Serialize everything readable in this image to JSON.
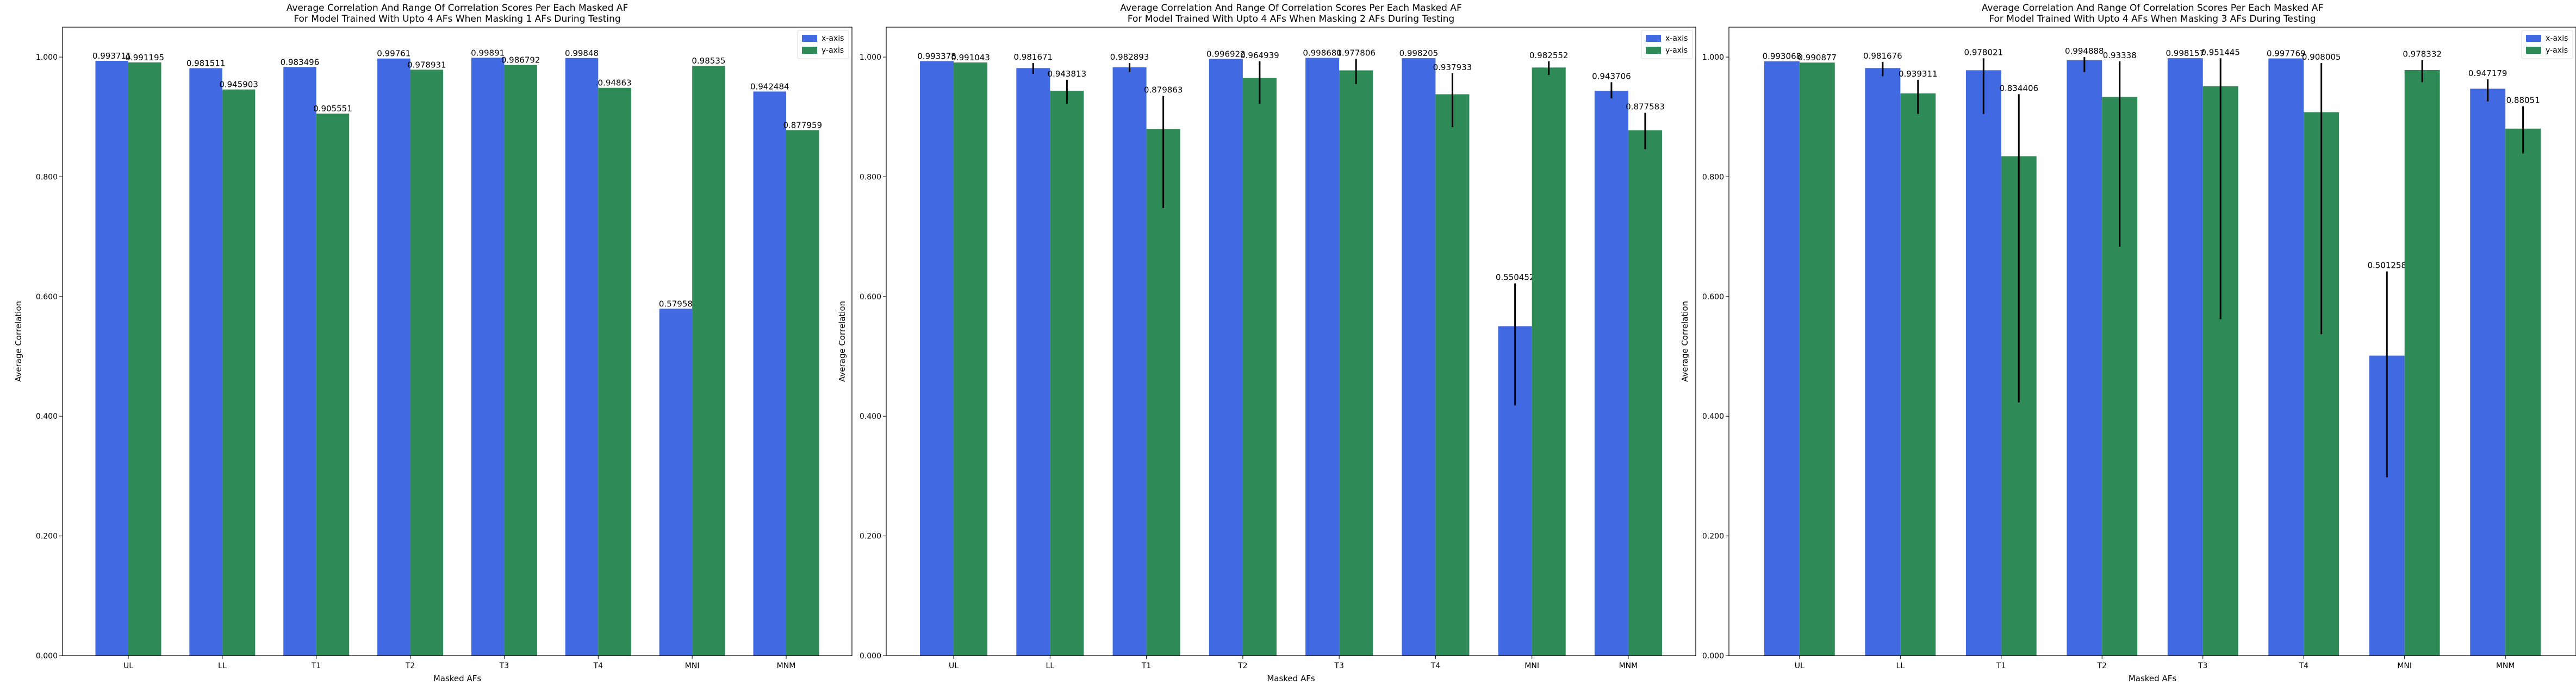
{
  "colors": {
    "x_axis": "#4169e1",
    "y_axis": "#2e8b57",
    "error_bar": "#000000"
  },
  "chart_data": [
    {
      "type": "bar",
      "title": "Average Correlation And Range Of Correlation Scores Per Each Masked AF",
      "subtitle": "For Model Trained With Upto 4 AFs When Masking 1 AFs During Testing",
      "xlabel": "Masked AFs",
      "ylabel": "Average Correlation",
      "ylim": [
        0,
        1.05
      ],
      "yticks": [
        "0.000",
        "0.200",
        "0.400",
        "0.600",
        "0.800",
        "1.000"
      ],
      "categories": [
        "UL",
        "LL",
        "T1",
        "T2",
        "T3",
        "T4",
        "MNI",
        "MNM"
      ],
      "legend_position": "top-right",
      "series": [
        {
          "name": "x-axis",
          "values": [
            0.993711,
            0.981511,
            0.983496,
            0.99761,
            0.99891,
            0.99848,
            0.57958,
            0.942484
          ],
          "labels": [
            "0.993711",
            "0.981511",
            "0.983496",
            "0.99761",
            "0.99891",
            "0.99848",
            "0.57958",
            "0.942484"
          ],
          "err_low": [
            null,
            null,
            null,
            null,
            null,
            null,
            null,
            null
          ],
          "err_high": [
            null,
            null,
            null,
            null,
            null,
            null,
            null,
            null
          ]
        },
        {
          "name": "y-axis",
          "values": [
            0.991195,
            0.945903,
            0.905551,
            0.978931,
            0.986792,
            0.94863,
            0.98535,
            0.877959
          ],
          "labels": [
            "0.991195",
            "0.945903",
            "0.905551",
            "0.978931",
            "0.986792",
            "0.94863",
            "0.98535",
            "0.877959"
          ],
          "err_low": [
            null,
            null,
            null,
            null,
            null,
            null,
            null,
            null
          ],
          "err_high": [
            null,
            null,
            null,
            null,
            null,
            null,
            null,
            null
          ]
        }
      ]
    },
    {
      "type": "bar",
      "title": "Average Correlation And Range Of Correlation Scores Per Each Masked AF",
      "subtitle": "For Model Trained With Upto 4 AFs When Masking 2 AFs During Testing",
      "xlabel": "Masked AFs",
      "ylabel": "Average Correlation",
      "ylim": [
        0,
        1.05
      ],
      "yticks": [
        "0.000",
        "0.200",
        "0.400",
        "0.600",
        "0.800",
        "1.000"
      ],
      "categories": [
        "UL",
        "LL",
        "T1",
        "T2",
        "T3",
        "T4",
        "MNI",
        "MNM"
      ],
      "legend_position": "top-right",
      "series": [
        {
          "name": "x-axis",
          "values": [
            0.993378,
            0.981671,
            0.982893,
            0.996922,
            0.998681,
            0.998205,
            0.550452,
            0.943706
          ],
          "labels": [
            "0.993378",
            "0.981671",
            "0.982893",
            "0.996922",
            "0.998681",
            "0.998205",
            "0.550452",
            "0.943706"
          ],
          "err_low": [
            null,
            0.972,
            0.975,
            null,
            null,
            null,
            0.418,
            0.931
          ],
          "err_high": [
            null,
            0.99,
            0.99,
            null,
            null,
            null,
            0.622,
            0.958
          ]
        },
        {
          "name": "y-axis",
          "values": [
            0.991043,
            0.943813,
            0.879863,
            0.964939,
            0.977806,
            0.937933,
            0.982552,
            0.877583
          ],
          "labels": [
            "0.991043",
            "0.943813",
            "0.879863",
            "0.964939",
            "0.977806",
            "0.937933",
            "0.982552",
            "0.877583"
          ],
          "err_low": [
            null,
            0.922,
            0.748,
            0.922,
            0.955,
            0.883,
            0.97,
            0.846
          ],
          "err_high": [
            null,
            0.962,
            0.935,
            0.993,
            0.997,
            0.973,
            0.993,
            0.907
          ]
        }
      ]
    },
    {
      "type": "bar",
      "title": "Average Correlation And Range Of Correlation Scores Per Each Masked AF",
      "subtitle": "For Model Trained With Upto 4 AFs When Masking 3 AFs During Testing",
      "xlabel": "Masked AFs",
      "ylabel": "Average Correlation",
      "ylim": [
        0,
        1.05
      ],
      "yticks": [
        "0.000",
        "0.200",
        "0.400",
        "0.600",
        "0.800",
        "1.000"
      ],
      "categories": [
        "UL",
        "LL",
        "T1",
        "T2",
        "T3",
        "T4",
        "MNI",
        "MNM"
      ],
      "legend_position": "top-right",
      "series": [
        {
          "name": "x-axis",
          "values": [
            0.993068,
            0.981676,
            0.978021,
            0.994888,
            0.998157,
            0.997769,
            0.501258,
            0.947179
          ],
          "labels": [
            "0.993068",
            "0.981676",
            "0.978021",
            "0.994888",
            "0.998157",
            "0.997769",
            "0.501258",
            "0.947179"
          ],
          "err_low": [
            null,
            0.968,
            0.905,
            0.975,
            null,
            null,
            0.298,
            0.926
          ],
          "err_high": [
            null,
            0.992,
            0.998,
            1.0,
            null,
            null,
            0.642,
            0.963
          ]
        },
        {
          "name": "y-axis",
          "values": [
            0.990877,
            0.939311,
            0.834406,
            0.93338,
            0.951445,
            0.908005,
            0.978332,
            0.88051
          ],
          "labels": [
            "0.990877",
            "0.939311",
            "0.834406",
            "0.93338",
            "0.951445",
            "0.908005",
            "0.978332",
            "0.88051"
          ],
          "err_low": [
            null,
            0.905,
            0.423,
            0.683,
            0.562,
            0.537,
            0.958,
            0.839
          ],
          "err_high": [
            null,
            0.962,
            0.938,
            0.993,
            0.998,
            0.99,
            0.995,
            0.918
          ]
        }
      ]
    }
  ]
}
